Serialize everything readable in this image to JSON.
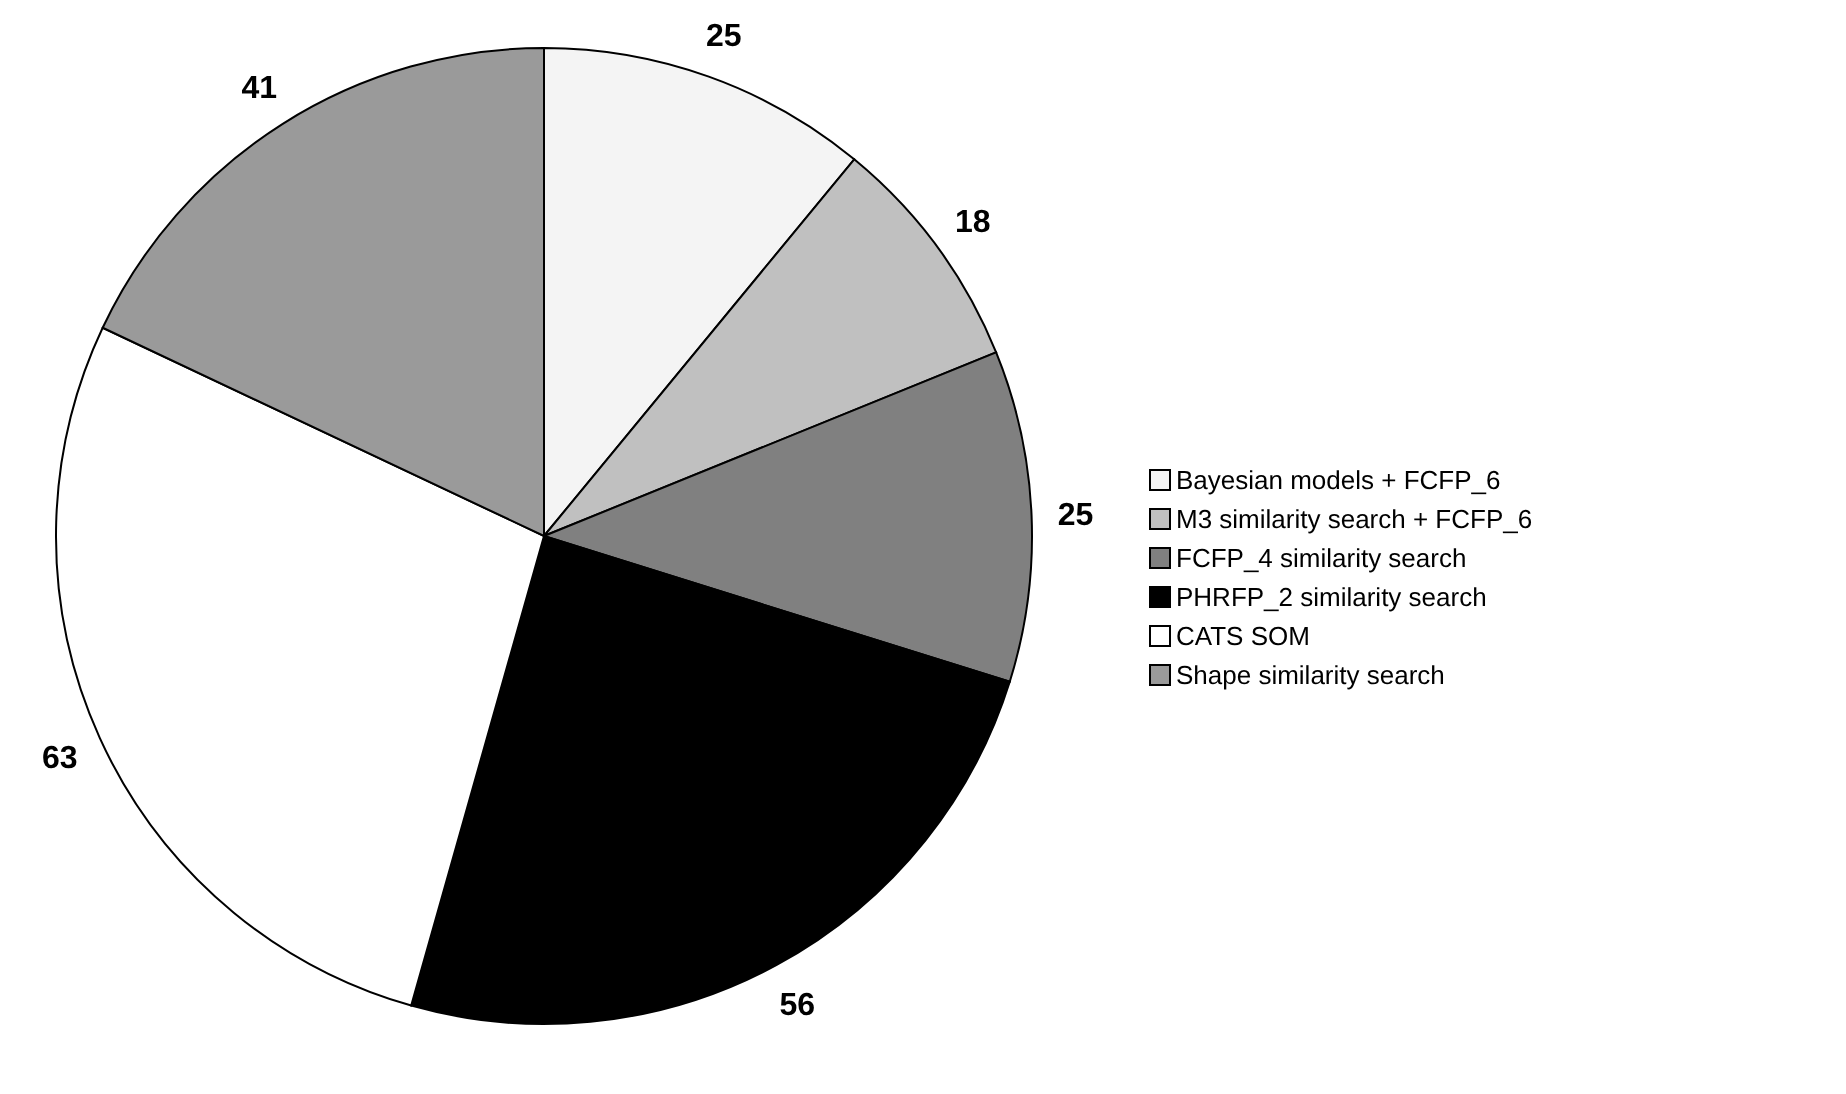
{
  "chart_data": {
    "type": "pie",
    "categories": [
      "Bayesian models + FCFP_6",
      "M3 similarity search + FCFP_6",
      "FCFP_4 similarity search",
      "PHRFP_2 similarity search",
      "CATS SOM",
      "Shape similarity search"
    ],
    "values": [
      25,
      18,
      25,
      56,
      63,
      41
    ],
    "colors": [
      "#f4f4f4",
      "#c0c0c0",
      "#808080",
      "#000000",
      "#ffffff",
      "#9a9a9a"
    ],
    "data_labels": true,
    "legend": "right"
  }
}
